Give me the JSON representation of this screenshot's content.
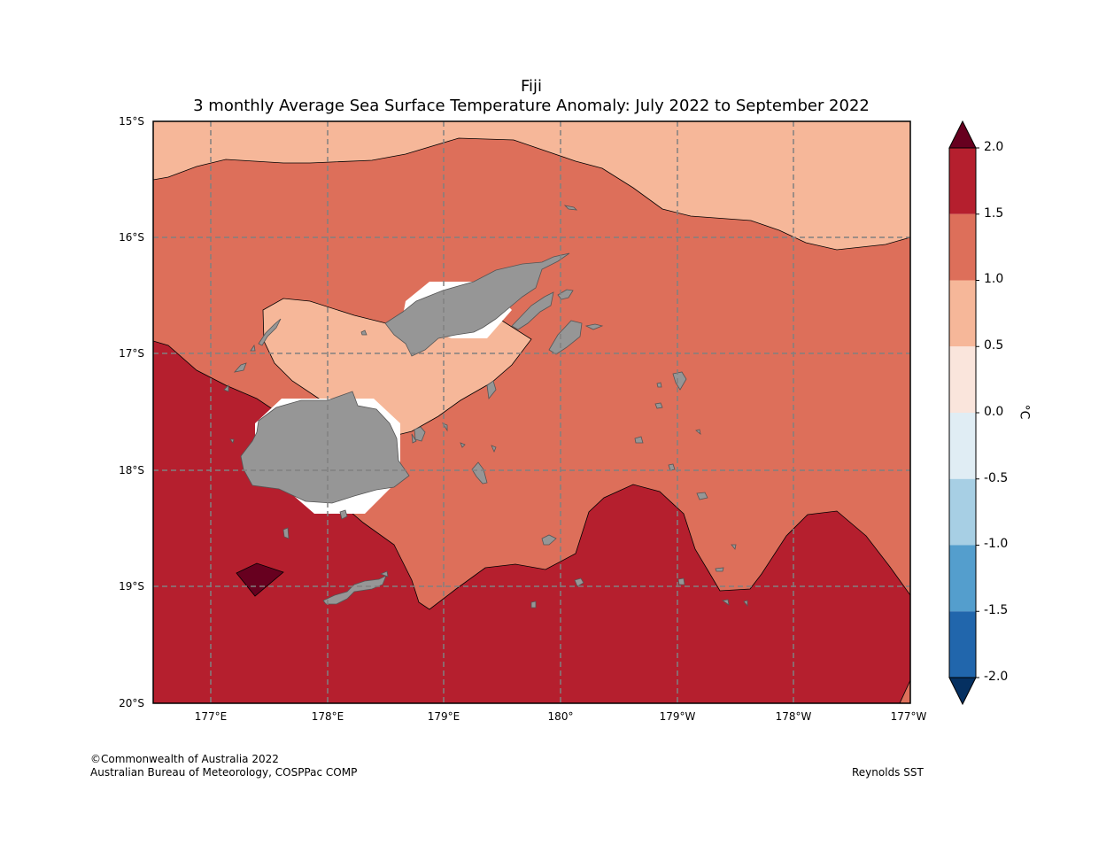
{
  "title": {
    "line1": "Fiji",
    "line2": "3 monthly Average Sea Surface Temperature Anomaly: July 2022 to September 2022"
  },
  "map": {
    "lat_labels": [
      "15°S",
      "16°S",
      "17°S",
      "18°S",
      "19°S",
      "20°S"
    ],
    "lon_labels": [
      "177°E",
      "178°E",
      "179°E",
      "180°",
      "179°W",
      "178°W",
      "177°W"
    ],
    "gridlines": "dashed",
    "land_color": "#969696",
    "colors": {
      "anom_0_5_1_0": "#f6b799",
      "anom_1_0_1_5": "#dd6f5a",
      "anom_1_5_2_0": "#b51f2e",
      "anom_above_2_0": "#67001f"
    }
  },
  "colorbar": {
    "unit": "°C",
    "ticks": [
      "2.0",
      "1.5",
      "1.0",
      "0.5",
      "0.0",
      "-0.5",
      "-1.0",
      "-1.5",
      "-2.0"
    ],
    "colors": [
      "#b51f2e",
      "#dd6f5a",
      "#f6b799",
      "#fae5dc",
      "#e0edf4",
      "#a7cfe4",
      "#549ecd",
      "#2166ac"
    ],
    "over_color": "#67001f",
    "under_color": "#053061"
  },
  "footer": {
    "copyright": "©Commonwealth of Australia 2022",
    "agency": "Australian Bureau of Meteorology, COSPPac COMP",
    "source": "Reynolds SST"
  }
}
